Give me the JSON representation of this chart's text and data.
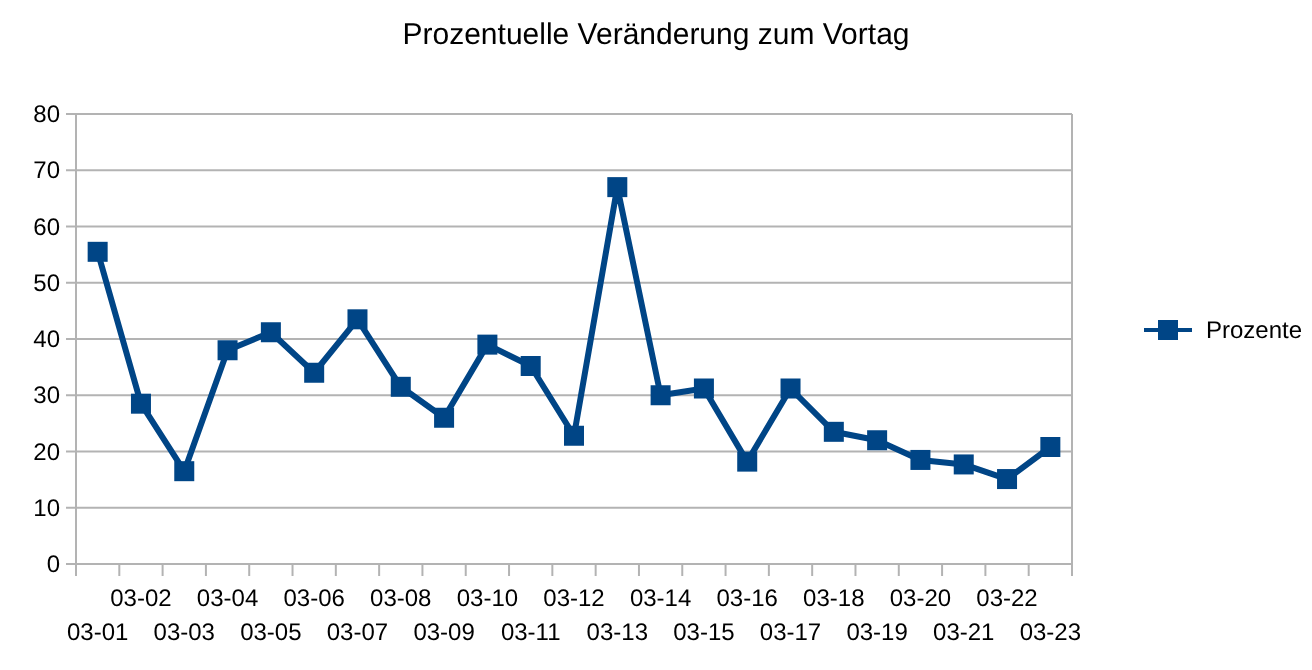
{
  "chart_data": {
    "type": "line",
    "title": "Prozentuelle Veränderung zum Vortag",
    "categories": [
      "03-01",
      "03-02",
      "03-03",
      "03-04",
      "03-05",
      "03-06",
      "03-07",
      "03-08",
      "03-09",
      "03-10",
      "03-11",
      "03-12",
      "03-13",
      "03-14",
      "03-15",
      "03-16",
      "03-17",
      "03-18",
      "03-19",
      "03-20",
      "03-21",
      "03-22",
      "03-23"
    ],
    "series": [
      {
        "name": "Prozente",
        "color": "#004586",
        "values": [
          55.5,
          28.5,
          16.5,
          38,
          41.2,
          34,
          43.5,
          31.5,
          26,
          39,
          35.2,
          22.8,
          67,
          30,
          31.2,
          18.2,
          31.2,
          23.5,
          22,
          18.5,
          17.7,
          15.1,
          20.8
        ]
      }
    ],
    "ylim": [
      0,
      80
    ],
    "yticks": [
      0,
      10,
      20,
      30,
      40,
      50,
      60,
      70,
      80
    ],
    "grid": "y",
    "legend": "right",
    "marker": "square",
    "line_style": "solid"
  }
}
